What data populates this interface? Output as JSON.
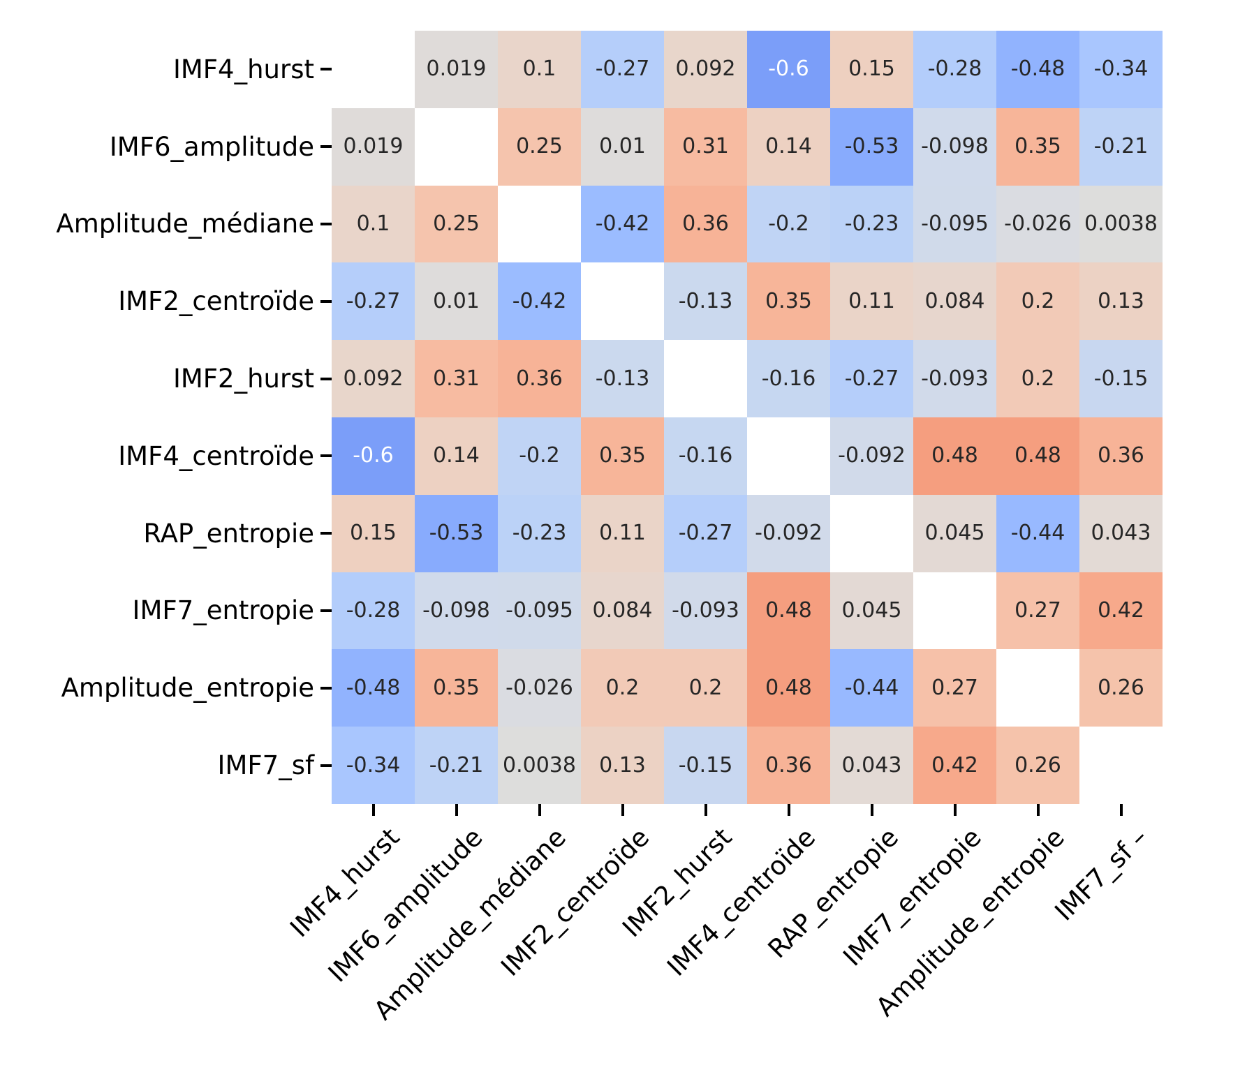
{
  "chart_data": {
    "type": "heatmap",
    "title": "",
    "variables": [
      "IMF4_hurst",
      "IMF6_amplitude",
      "Amplitude_médiane",
      "IMF2_centroïde",
      "IMF2_hurst",
      "IMF4_centroïde",
      "RAP_entropie",
      "IMF7_entropie",
      "Amplitude_entropie",
      "IMF7_sf"
    ],
    "x_tick_labels": [
      "IMF4_hurst",
      "IMF6_amplitude",
      "Amplitude_médiane",
      "IMF2_centroïde",
      "IMF2_hurst",
      "IMF4_centroïde",
      "RAP_entropie",
      "IMF7_entropie",
      "Amplitude_entropie",
      "IMF7_sf –"
    ],
    "matrix": [
      [
        null,
        "0.019",
        "0.1",
        "-0.27",
        "0.092",
        "-0.6",
        "0.15",
        "-0.28",
        "-0.48",
        "-0.34"
      ],
      [
        "0.019",
        null,
        "0.25",
        "0.01",
        "0.31",
        "0.14",
        "-0.53",
        "-0.098",
        "0.35",
        "-0.21"
      ],
      [
        "0.1",
        "0.25",
        null,
        "-0.42",
        "0.36",
        "-0.2",
        "-0.23",
        "-0.095",
        "-0.026",
        "0.0038"
      ],
      [
        "-0.27",
        "0.01",
        "-0.42",
        null,
        "-0.13",
        "0.35",
        "0.11",
        "0.084",
        "0.2",
        "0.13"
      ],
      [
        "0.092",
        "0.31",
        "0.36",
        "-0.13",
        null,
        "-0.16",
        "-0.27",
        "-0.093",
        "0.2",
        "-0.15"
      ],
      [
        "-0.6",
        "0.14",
        "-0.2",
        "0.35",
        "-0.16",
        null,
        "-0.092",
        "0.48",
        "0.48",
        "0.36"
      ],
      [
        "0.15",
        "-0.53",
        "-0.23",
        "0.11",
        "-0.27",
        "-0.092",
        null,
        "0.045",
        "-0.44",
        "0.043"
      ],
      [
        "-0.28",
        "-0.098",
        "-0.095",
        "0.084",
        "-0.093",
        "0.48",
        "0.045",
        null,
        "0.27",
        "0.42"
      ],
      [
        "-0.48",
        "0.35",
        "-0.026",
        "0.2",
        "0.2",
        "0.48",
        "-0.44",
        "0.27",
        null,
        "0.26"
      ],
      [
        "-0.34",
        "-0.21",
        "0.0038",
        "0.13",
        "-0.15",
        "0.36",
        "0.043",
        "0.42",
        "0.26",
        null
      ]
    ],
    "colormap": "coolwarm",
    "vmin": -1,
    "vmax": 1,
    "masked_diagonal": true,
    "layout_hints": {
      "x_label_rotation_deg": 45,
      "grid": false,
      "legend": false,
      "colorbar": false
    },
    "colors": {
      "background": "#ffffff",
      "annotation_dark": "#262626",
      "annotation_light": "#ffffff",
      "axis_label": "#000000",
      "tick": "#000000",
      "masked_cell": "#ffffff"
    }
  }
}
